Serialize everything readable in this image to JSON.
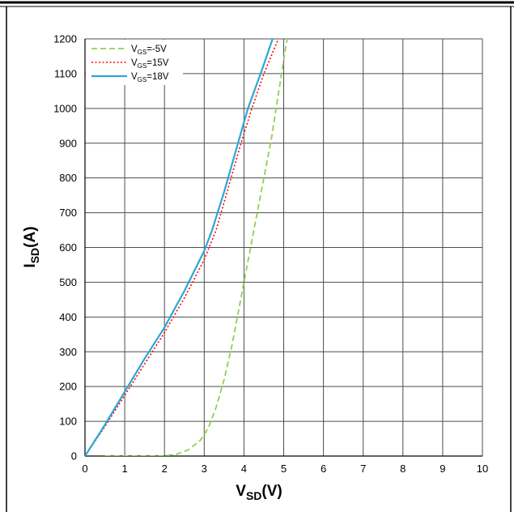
{
  "chart_data": {
    "type": "line",
    "xlabel": {
      "main": "V",
      "sub": "SD",
      "unit": "(V)"
    },
    "ylabel": {
      "main": "I",
      "sub": "SD",
      "unit": "(A)"
    },
    "xlim": [
      0,
      10
    ],
    "ylim": [
      0,
      1200
    ],
    "x_ticks": [
      "0",
      "1",
      "2",
      "3",
      "4",
      "5",
      "6",
      "7",
      "8",
      "9",
      "10"
    ],
    "y_ticks": [
      "0",
      "100",
      "200",
      "300",
      "400",
      "500",
      "600",
      "700",
      "800",
      "900",
      "1000",
      "1100",
      "1200"
    ],
    "grid": true,
    "legend_position": "top-left",
    "series": [
      {
        "name": "V_GS=-5V",
        "label": {
          "main": "V",
          "sub": "GS",
          "rest": "=-5V"
        },
        "color": "#92d050",
        "style": "dashed",
        "points": [
          [
            0.5,
            0
          ],
          [
            1.0,
            0
          ],
          [
            1.5,
            0
          ],
          [
            2.0,
            1
          ],
          [
            2.3,
            5
          ],
          [
            2.6,
            18
          ],
          [
            2.9,
            45
          ],
          [
            3.1,
            80
          ],
          [
            3.3,
            140
          ],
          [
            3.5,
            220
          ],
          [
            3.7,
            320
          ],
          [
            3.9,
            440
          ],
          [
            4.1,
            560
          ],
          [
            4.3,
            680
          ],
          [
            4.5,
            800
          ],
          [
            4.7,
            920
          ],
          [
            4.85,
            1030
          ],
          [
            5.0,
            1140
          ],
          [
            5.1,
            1210
          ]
        ]
      },
      {
        "name": "V_GS=15V",
        "label": {
          "main": "V",
          "sub": "GS",
          "rest": "=15V"
        },
        "color": "#ff0000",
        "style": "dotted",
        "points": [
          [
            0,
            0
          ],
          [
            0.5,
            85
          ],
          [
            1.0,
            175
          ],
          [
            1.5,
            265
          ],
          [
            2.0,
            355
          ],
          [
            2.5,
            455
          ],
          [
            3.0,
            565
          ],
          [
            3.3,
            650
          ],
          [
            3.6,
            770
          ],
          [
            3.9,
            890
          ],
          [
            4.2,
            1000
          ],
          [
            4.5,
            1100
          ],
          [
            4.9,
            1210
          ]
        ]
      },
      {
        "name": "V_GS=18V",
        "label": {
          "main": "V",
          "sub": "GS",
          "rest": "=18V"
        },
        "color": "#2aa7d6",
        "style": "solid",
        "points": [
          [
            0,
            0
          ],
          [
            0.5,
            90
          ],
          [
            1.0,
            185
          ],
          [
            1.5,
            280
          ],
          [
            2.0,
            370
          ],
          [
            2.5,
            475
          ],
          [
            3.0,
            590
          ],
          [
            3.2,
            650
          ],
          [
            3.5,
            760
          ],
          [
            3.8,
            880
          ],
          [
            4.1,
            1000
          ],
          [
            4.45,
            1110
          ],
          [
            4.75,
            1210
          ]
        ]
      }
    ]
  }
}
